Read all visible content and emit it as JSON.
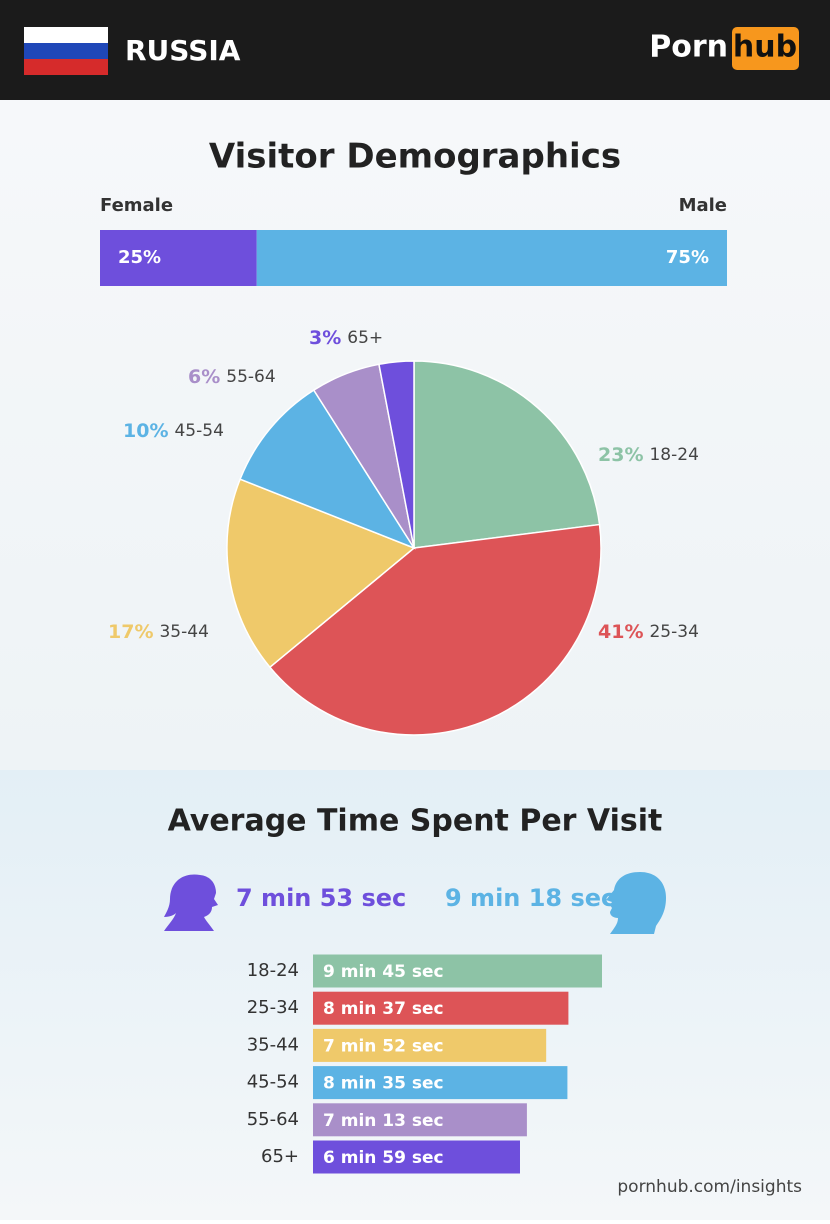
{
  "header": {
    "country": "RUSSIA",
    "logo_left": "Porn",
    "logo_right": "hub"
  },
  "chart_data": [
    {
      "type": "stacked-bar",
      "title": "Visitor Demographics",
      "series": [
        {
          "name": "Female",
          "color": "#6e4fdc",
          "values": [
            25
          ],
          "value_labels": [
            "25%"
          ]
        },
        {
          "name": "Male",
          "color": "#5cb3e4",
          "values": [
            75
          ],
          "value_labels": [
            "75%"
          ]
        }
      ]
    },
    {
      "type": "pie",
      "categories": [
        "18-24",
        "25-34",
        "35-44",
        "45-54",
        "55-64",
        "65+"
      ],
      "values": [
        23,
        41,
        17,
        10,
        6,
        3
      ],
      "value_labels": [
        "23%",
        "41%",
        "17%",
        "10%",
        "6%",
        "3%"
      ],
      "colors": [
        "#8dc3a6",
        "#dd5457",
        "#efc96a",
        "#5cb3e4",
        "#a98fc9",
        "#6e4fdc"
      ]
    },
    {
      "type": "hbar",
      "title": "Average Time Spent Per Visit",
      "summary": [
        {
          "label": "7 min 53 sec",
          "color": "#6e4fdc"
        },
        {
          "label": "9 min 18 sec",
          "color": "#5cb3e4"
        }
      ],
      "categories": [
        "18-24",
        "25-34",
        "35-44",
        "45-54",
        "55-64",
        "65+"
      ],
      "values": [
        585,
        517,
        472,
        515,
        433,
        419
      ],
      "value_labels": [
        "9 min 45 sec",
        "8 min 37 sec",
        "7 min 52 sec",
        "8 min 35 sec",
        "7 min 13 sec",
        "6 min 59 sec"
      ],
      "colors": [
        "#8dc3a6",
        "#dd5457",
        "#efc96a",
        "#5cb3e4",
        "#a98fc9",
        "#6e4fdc"
      ]
    }
  ],
  "footer": "pornhub.com/insights"
}
